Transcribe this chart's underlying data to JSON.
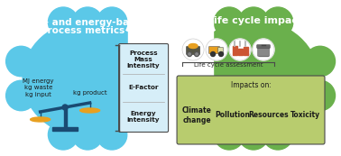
{
  "bg_color": "#ffffff",
  "left_blob_color": "#5bc8e8",
  "right_blob_color": "#6ab04c",
  "left_title_line1": "Mass- and energy-based",
  "left_title_line2": "process metrics",
  "right_title": "Life cycle impacts",
  "left_title_color": "#ffffff",
  "right_title_color": "#ffffff",
  "scale_left_label": "MJ energy\nkg waste\nkg input",
  "scale_right_label": "kg product",
  "metrics_box_bg": "#d6eef8",
  "metrics_box_border": "#4a4a4a",
  "metrics_items": [
    "Process\nMass\nIntensity",
    "E-Factor",
    "Energy\nintensity"
  ],
  "metrics_text_color": "#1a1a1a",
  "lca_label": "Life cycle assessment",
  "lca_label_color": "#2a2a2a",
  "impacts_box_bg": "#b8cc6e",
  "impacts_box_border": "#4a4a4a",
  "impacts_title": "Impacts on:",
  "impacts_items": [
    "Climate\nchange",
    "Pollution",
    "Resources",
    "Toxicity"
  ],
  "impacts_text_color": "#1a1a1a",
  "icon_circle_color": "#ffffff",
  "scale_beam_color": "#1a4a72",
  "scale_pan_color": "#e8a020",
  "bracket_color": "#4a4a4a",
  "figure_bg": "#ffffff"
}
